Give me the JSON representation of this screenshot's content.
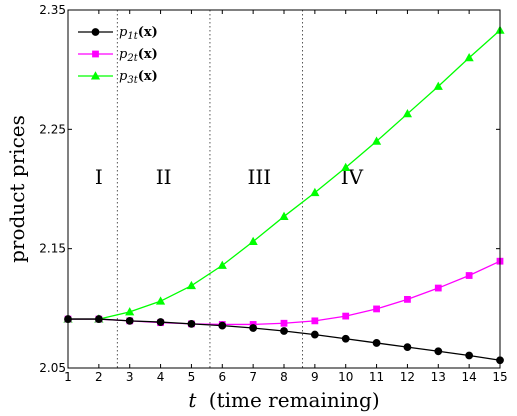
{
  "chart_data": {
    "type": "line",
    "xlabel_var": "t",
    "xlabel_rest": "(time remaining)",
    "ylabel": "product prices",
    "x": [
      1,
      2,
      3,
      4,
      5,
      6,
      7,
      8,
      9,
      10,
      11,
      12,
      13,
      14,
      15
    ],
    "xlim": [
      1,
      15
    ],
    "ylim": [
      2.05,
      2.35
    ],
    "y_ticks": [
      "2.05",
      "2.15",
      "2.25",
      "2.35"
    ],
    "y_tick_values": [
      2.05,
      2.15,
      2.25,
      2.35
    ],
    "x_ticks": [
      "1",
      "2",
      "3",
      "4",
      "5",
      "6",
      "7",
      "8",
      "9",
      "10",
      "11",
      "12",
      "13",
      "14",
      "15"
    ],
    "grid": false,
    "legend_placement": "top-left",
    "series": [
      {
        "name": "p1t(x)",
        "label_main": "p",
        "label_sub": "1t",
        "label_arg": "(x)",
        "color": "#000000",
        "marker": "circle",
        "values": [
          2.091,
          2.091,
          2.0895,
          2.0885,
          2.087,
          2.0855,
          2.0835,
          2.081,
          2.078,
          2.0745,
          2.071,
          2.0675,
          2.064,
          2.0605,
          2.0565
        ]
      },
      {
        "name": "p2t(x)",
        "label_main": "p",
        "label_sub": "2t",
        "label_arg": "(x)",
        "color": "#ff00ff",
        "marker": "square",
        "values": [
          2.091,
          2.091,
          2.0895,
          2.088,
          2.087,
          2.0865,
          2.0865,
          2.0875,
          2.0895,
          2.0935,
          2.0995,
          2.1075,
          2.117,
          2.1275,
          2.1395
        ]
      },
      {
        "name": "p3t(x)",
        "label_main": "p",
        "label_sub": "3t",
        "label_arg": "(x)",
        "color": "#00ff00",
        "marker": "triangle",
        "values": [
          2.091,
          2.091,
          2.097,
          2.106,
          2.119,
          2.136,
          2.156,
          2.177,
          2.197,
          2.218,
          2.24,
          2.263,
          2.286,
          2.31,
          2.333
        ]
      }
    ],
    "regions": [
      {
        "label": "I",
        "label_x": 2.0
      },
      {
        "label": "II",
        "label_x": 4.1
      },
      {
        "label": "III",
        "label_x": 7.2
      },
      {
        "label": "IV",
        "label_x": 10.2
      }
    ],
    "region_boundaries": [
      2.6,
      5.6,
      8.6
    ],
    "region_label_y": 2.21
  }
}
